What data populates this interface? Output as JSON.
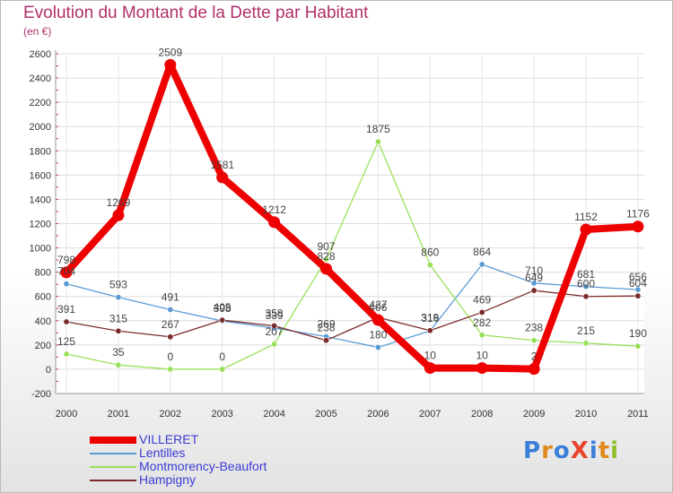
{
  "chart_data": {
    "type": "line",
    "title": "Evolution du Montant de la Dette par Habitant",
    "unit": "(en €)",
    "categories": [
      "2000",
      "2001",
      "2002",
      "2003",
      "2004",
      "2005",
      "2006",
      "2007",
      "2008",
      "2009",
      "2010",
      "2011"
    ],
    "ylim": [
      -200,
      2600
    ],
    "yticks": [
      -200,
      0,
      200,
      400,
      600,
      800,
      1000,
      1200,
      1400,
      1600,
      1800,
      2000,
      2200,
      2400,
      2600
    ],
    "grid": true,
    "legend_position": "bottom-left",
    "series": [
      {
        "name": "VILLERET",
        "color": "#ee0000",
        "values": [
          798,
          1269,
          2509,
          1581,
          1212,
          828,
          406,
          10,
          10,
          2,
          1152,
          1176
        ]
      },
      {
        "name": "Lentilles",
        "color": "#5b9bd5",
        "values": [
          704,
          593,
          491,
          398,
          339,
          269,
          180,
          316,
          864,
          710,
          681,
          656
        ]
      },
      {
        "name": "Montmorency-Beaufort",
        "color": "#99e05a",
        "values": [
          125,
          35,
          0,
          0,
          207,
          907,
          1875,
          860,
          282,
          238,
          215,
          190
        ]
      },
      {
        "name": "Hampigny",
        "color": "#7b2b2b",
        "values": [
          391,
          315,
          267,
          405,
          358,
          238,
          427,
          319,
          469,
          649,
          600,
          604
        ]
      }
    ]
  },
  "legend": {
    "items": [
      "VILLERET",
      "Lentilles",
      "Montmorency-Beaufort",
      "Hampigny"
    ]
  },
  "logo": {
    "text": "ProXiti"
  }
}
